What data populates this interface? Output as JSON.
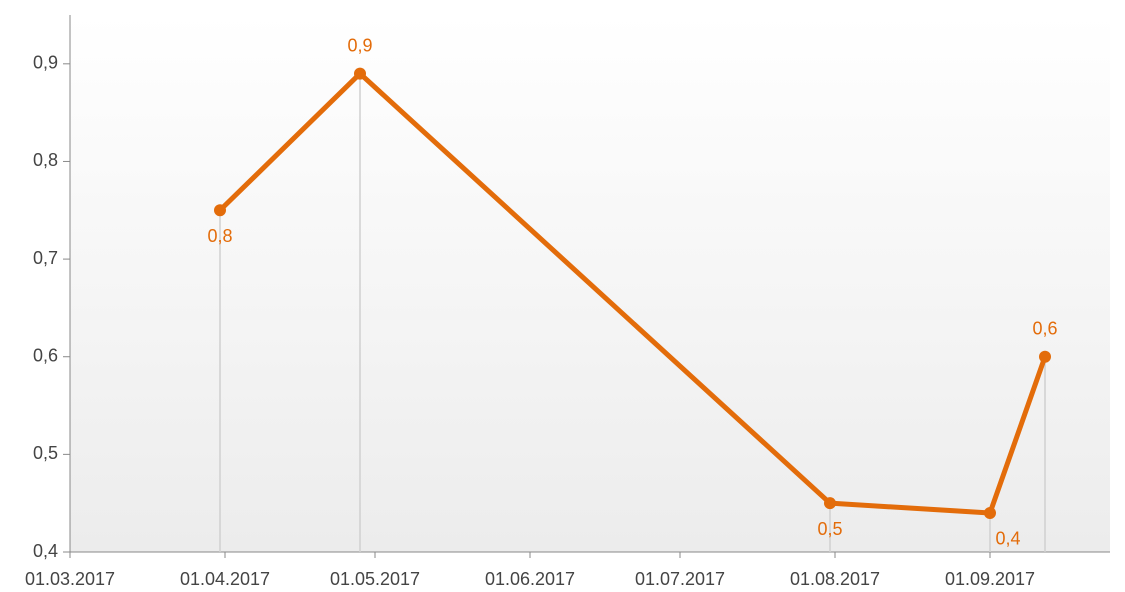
{
  "chart_data": {
    "type": "line",
    "x": [
      "31.03.2017",
      "28.04.2017",
      "31.07.2017",
      "01.09.2017",
      "12.09.2017"
    ],
    "series": [
      {
        "color": "#e36c0a",
        "values": [
          0.75,
          0.89,
          0.45,
          0.44,
          0.6
        ],
        "value_labels": [
          "0,8",
          "0,9",
          "0,5",
          "0,4",
          "0,6"
        ]
      }
    ],
    "xlim": [
      "01.03.2017",
      "25.09.2017"
    ],
    "xticks": [
      "01.03.2017",
      "01.04.2017",
      "01.05.2017",
      "01.06.2017",
      "01.07.2017",
      "01.08.2017",
      "01.09.2017"
    ],
    "ylim": [
      0.4,
      0.95
    ],
    "yticks": [
      {
        "value": 0.4,
        "label": "0,4"
      },
      {
        "value": 0.5,
        "label": "0,5"
      },
      {
        "value": 0.6,
        "label": "0,6"
      },
      {
        "value": 0.7,
        "label": "0,7"
      },
      {
        "value": 0.8,
        "label": "0,8"
      },
      {
        "value": 0.9,
        "label": "0,9"
      }
    ],
    "drop_lines": true
  }
}
